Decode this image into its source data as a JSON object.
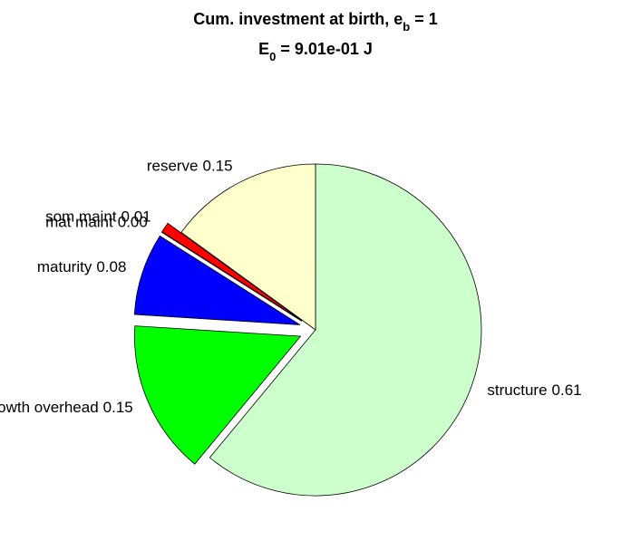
{
  "chart_data": {
    "type": "pie",
    "title_lines": [
      [
        "Cum. investment at birth, e",
        "b",
        " = 1"
      ],
      [
        "E",
        "0",
        " = 9.01e-01 J"
      ]
    ],
    "categories": [
      "structure",
      "growth overhead",
      "maturity",
      "mat maint",
      "som maint",
      "reserve"
    ],
    "values": [
      0.61,
      0.15,
      0.08,
      0.0,
      0.01,
      0.15
    ],
    "value_labels": [
      "0.61",
      "0.15",
      "0.08",
      "0.00",
      "0.01",
      "0.15"
    ],
    "colors": [
      "#ccffcc",
      "#00ff00",
      "#0000ff",
      "#ff0000",
      "#ff0000",
      "#ffffcc"
    ],
    "explode": [
      false,
      true,
      true,
      true,
      true,
      false
    ]
  }
}
